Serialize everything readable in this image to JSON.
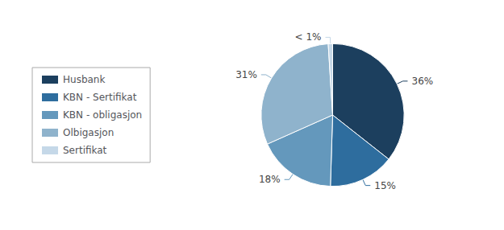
{
  "chart_data": {
    "type": "pie",
    "categories": [
      "Husbank",
      "KBN - Sertifikat",
      "KBN - obligasjon",
      "Olbigasjon",
      "Sertifikat"
    ],
    "values": [
      36,
      15,
      18,
      31,
      1
    ],
    "value_labels": [
      "36%",
      "15%",
      "18%",
      "31%",
      "< 1%"
    ],
    "colors": [
      "#1c3f5e",
      "#2e6d9e",
      "#6498bc",
      "#8fb3cc",
      "#c5d8e8"
    ],
    "legend": "left",
    "data_labels": true
  }
}
